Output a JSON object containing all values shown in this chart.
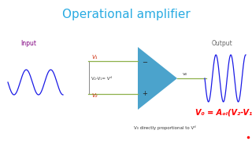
{
  "title": "Operational amplifier",
  "title_color": "#29ABE2",
  "title_fontsize": 11,
  "bg_color": "#FFFFFF",
  "input_label": "Input",
  "input_label_color": "#800080",
  "output_label": "Output",
  "output_label_color": "#666666",
  "v1_label": "V₁",
  "v2_label": "V₂",
  "vd_label": "V₂-V₁= Vᵈ",
  "v0_label": "v₀",
  "formula_line1": "V₀ = Aₒₗ(V₂-V₁)",
  "formula_color": "#FF0000",
  "subtext": "V₀ directly proportional to Vᵈ",
  "subtext_color": "#333333",
  "line_color_h": "#8DB04A",
  "triangle_color": "#4BA3CC",
  "wave_color": "#1A1AE6",
  "minus_color": "#222222",
  "plus_color": "#222222",
  "vd_color": "#333333",
  "v1v2_color": "#CC2200",
  "brace_color": "#888888",
  "dot_color": "#FF0000"
}
